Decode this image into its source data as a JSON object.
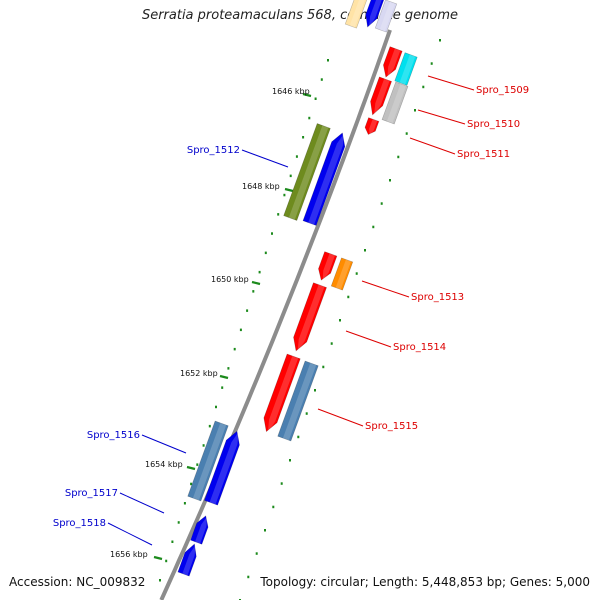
{
  "title": "Serratia proteamaculans 568, complete genome",
  "accession": "Accession: NC_009832",
  "summary": "Topology: circular; Length: 5,448,853 bp; Genes: 5,000",
  "colors": {
    "backbone": "#8c8c8c",
    "ticks": "#1c8a1c",
    "forward_label": "#0000cc",
    "reverse_label": "#dd0000"
  },
  "scale_labels": [
    "1646 kbp",
    "1648 kbp",
    "1650 kbp",
    "1652 kbp",
    "1654 kbp",
    "1656 kbp"
  ],
  "genes": [
    {
      "name": "Spro_1509",
      "strand": "reverse"
    },
    {
      "name": "Spro_1510",
      "strand": "reverse"
    },
    {
      "name": "Spro_1511",
      "strand": "reverse"
    },
    {
      "name": "Spro_1512",
      "strand": "forward"
    },
    {
      "name": "Spro_1513",
      "strand": "reverse"
    },
    {
      "name": "Spro_1514",
      "strand": "reverse"
    },
    {
      "name": "Spro_1515",
      "strand": "reverse"
    },
    {
      "name": "Spro_1516",
      "strand": "forward"
    },
    {
      "name": "Spro_1517",
      "strand": "forward"
    },
    {
      "name": "Spro_1518",
      "strand": "forward"
    }
  ]
}
